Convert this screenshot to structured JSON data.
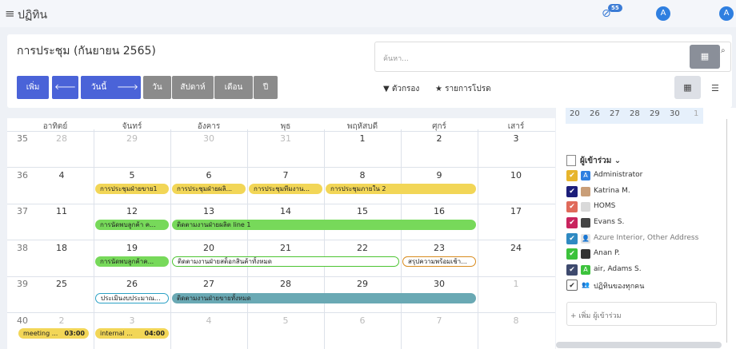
{
  "topbar": {
    "menu_icon": "≡",
    "title": "ปฏิทิน",
    "activity_badge": "55",
    "avatar1": "A",
    "avatar2": "A"
  },
  "header": {
    "title": "การประชุม (กันยายน 2565)"
  },
  "toolbar": {
    "add": "เพิ่ม",
    "today": "วันนี้",
    "day": "วัน",
    "week": "สัปดาห์",
    "month": "เดือน",
    "year": "ปี",
    "search_placeholder": "ค้นหา...",
    "filters": "▼ ตัวกรอง",
    "favorites": "★ รายการโปรด"
  },
  "calendar": {
    "weekdays": [
      "อาทิตย์",
      "จันทร์",
      "อังคาร",
      "พุธ",
      "พฤหัสบดี",
      "ศุกร์",
      "เสาร์"
    ],
    "weeks": [
      {
        "num": "35",
        "days": [
          "28",
          "29",
          "30",
          "31",
          "1",
          "2",
          "3"
        ]
      },
      {
        "num": "36",
        "days": [
          "4",
          "5",
          "6",
          "7",
          "8",
          "9",
          "10"
        ]
      },
      {
        "num": "37",
        "days": [
          "11",
          "12",
          "13",
          "14",
          "15",
          "16",
          "17"
        ]
      },
      {
        "num": "38",
        "days": [
          "18",
          "19",
          "20",
          "21",
          "22",
          "23",
          "24"
        ]
      },
      {
        "num": "39",
        "days": [
          "25",
          "26",
          "27",
          "28",
          "29",
          "30",
          "1"
        ]
      },
      {
        "num": "40",
        "days": [
          "2",
          "3",
          "4",
          "5",
          "6",
          "7",
          "8"
        ]
      }
    ],
    "events": [
      "การประชุมฝ่ายขาย1",
      "การประชุมฝ่ายผลิ...",
      "การประชุมทีมงาน...",
      "การประชุมภายใน 2",
      "การนัดพบลูกค้า ค...",
      "ติดตามงานฝ่ายผลิต line 1",
      "การนัดพบลูกค้าค...",
      "ติดตามงานฝ่ายสต็อกสินค้าทั้งหมด",
      "สรุปความพร้อมเช้า...",
      "ประเมินงบประมาณ...",
      "ติดตามงานฝ่ายขายทั้งหมด",
      "meeting ...",
      "internal ..."
    ],
    "event_times": [
      "03:00",
      "04:00"
    ]
  },
  "sidebar": {
    "mini_days": [
      "20",
      "26",
      "27",
      "28",
      "29",
      "30",
      "1"
    ],
    "attendees_title": "ผู้เข้าร่วม ⌄",
    "attendees": [
      {
        "name": "Administrator",
        "avatar": "A"
      },
      {
        "name": "Katrina M.",
        "avatar": ""
      },
      {
        "name": "HOMS",
        "avatar": ""
      },
      {
        "name": "Evans S.",
        "avatar": ""
      },
      {
        "name": "Azure Interior, Other Address",
        "avatar": ""
      },
      {
        "name": "Anan P.",
        "avatar": ""
      },
      {
        "name": "air, Adams S.",
        "avatar": "A"
      },
      {
        "name": "ปฏิทินของทุกคน",
        "avatar": ""
      }
    ],
    "add_attendee": "+ เพิ่ม ผู้เข้าร่วม"
  },
  "colors": {
    "primary": "#4a63d8",
    "secondary": "#8b8b8b",
    "event_yellow": "#f2d657",
    "event_green": "#77d95a",
    "event_teal": "#6aa9b4"
  }
}
